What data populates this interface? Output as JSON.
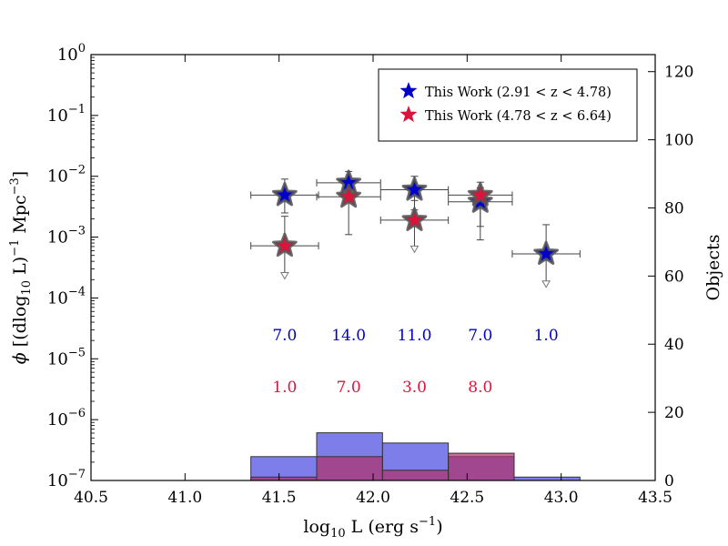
{
  "chart_data": {
    "type": "scatter",
    "xlabel": {
      "base": "log",
      "sub": "10",
      "rest": " L (erg s",
      "sup": "−1",
      "end": ")"
    },
    "ylabel_left": {
      "phi": "ϕ",
      "a": " [(dlog",
      "sub": "10",
      "b": " L)",
      "sup1": "−1",
      "c": " Mpc",
      "sup2": "−3",
      "d": "]"
    },
    "ylabel_right": "Objects",
    "xlim": [
      40.5,
      43.5
    ],
    "ylim_log_exp": [
      -7,
      0
    ],
    "y2lim": [
      0,
      125
    ],
    "x_ticks": [
      "40.5",
      "41.0",
      "41.5",
      "42.0",
      "42.5",
      "43.0",
      "43.5"
    ],
    "x_tick_values": [
      40.5,
      41.0,
      41.5,
      42.0,
      42.5,
      43.0,
      43.5
    ],
    "y_ticks": [
      {
        "exp": -7,
        "base": "10",
        "sup": "−7"
      },
      {
        "exp": -6,
        "base": "10",
        "sup": "−6"
      },
      {
        "exp": -5,
        "base": "10",
        "sup": "−5"
      },
      {
        "exp": -4,
        "base": "10",
        "sup": "−4"
      },
      {
        "exp": -3,
        "base": "10",
        "sup": "−3"
      },
      {
        "exp": -2,
        "base": "10",
        "sup": "−2"
      },
      {
        "exp": -1,
        "base": "10",
        "sup": "−1"
      },
      {
        "exp": 0,
        "base": "10",
        "sup": "0"
      }
    ],
    "y2_ticks": [
      "0",
      "20",
      "40",
      "60",
      "80",
      "100",
      "120"
    ],
    "y2_tick_values": [
      0,
      20,
      40,
      60,
      80,
      100,
      120
    ],
    "legend": {
      "position": "top-right",
      "entries": [
        {
          "label": "This Work (2.91 < z < 4.78)",
          "color": "#0000cc"
        },
        {
          "label": "This Work (4.78 < z < 6.64)",
          "color": "#dc143c"
        }
      ]
    },
    "series": [
      {
        "name": "This Work (2.91 < z < 4.78)",
        "color": "#0000cc",
        "points": [
          {
            "x": 41.53,
            "xerr": 0.18,
            "y": 0.0049,
            "ylo": 0.0025,
            "yhi": 0.009
          },
          {
            "x": 41.87,
            "xerr": 0.17,
            "y": 0.0078,
            "ylo": 0.0045,
            "yhi": 0.012
          },
          {
            "x": 42.22,
            "xerr": 0.18,
            "y": 0.006,
            "ylo": 0.0028,
            "yhi": 0.01
          },
          {
            "x": 42.57,
            "xerr": 0.17,
            "y": 0.0038,
            "ylo": 0.0015,
            "yhi": 0.0065
          },
          {
            "x": 42.92,
            "xerr": 0.18,
            "y": 0.00053,
            "ylo": 0.00016,
            "yhi": 0.0016,
            "upper_limit": true
          }
        ],
        "hist": [
          {
            "left": 41.35,
            "right": 41.7,
            "count": 7
          },
          {
            "left": 41.7,
            "right": 42.05,
            "count": 14
          },
          {
            "left": 42.05,
            "right": 42.4,
            "count": 11
          },
          {
            "left": 42.4,
            "right": 42.75,
            "count": 7
          },
          {
            "left": 42.75,
            "right": 43.1,
            "count": 1
          }
        ]
      },
      {
        "name": "This Work (4.78 < z < 6.64)",
        "color": "#dc143c",
        "points": [
          {
            "x": 41.53,
            "xerr": 0.18,
            "y": 0.00072,
            "ylo": 0.00022,
            "yhi": 0.0022,
            "upper_limit": true
          },
          {
            "x": 41.87,
            "xerr": 0.17,
            "y": 0.0046,
            "ylo": 0.0011,
            "yhi": 0.009
          },
          {
            "x": 42.22,
            "xerr": 0.18,
            "y": 0.0019,
            "ylo": 0.0006,
            "yhi": 0.004,
            "upper_limit": true
          },
          {
            "x": 42.57,
            "xerr": 0.17,
            "y": 0.0049,
            "ylo": 0.0009,
            "yhi": 0.008
          }
        ],
        "hist": [
          {
            "left": 41.35,
            "right": 41.7,
            "count": 1
          },
          {
            "left": 41.7,
            "right": 42.05,
            "count": 7
          },
          {
            "left": 42.05,
            "right": 42.4,
            "count": 3
          },
          {
            "left": 42.4,
            "right": 42.75,
            "count": 8
          }
        ]
      }
    ],
    "count_labels": [
      {
        "series": 0,
        "x": 41.53,
        "text": "7.0"
      },
      {
        "series": 0,
        "x": 41.87,
        "text": "14.0"
      },
      {
        "series": 0,
        "x": 42.22,
        "text": "11.0"
      },
      {
        "series": 0,
        "x": 42.57,
        "text": "7.0"
      },
      {
        "series": 0,
        "x": 42.92,
        "text": "1.0"
      },
      {
        "series": 1,
        "x": 41.53,
        "text": "1.0"
      },
      {
        "series": 1,
        "x": 41.87,
        "text": "7.0"
      },
      {
        "series": 1,
        "x": 42.22,
        "text": "3.0"
      },
      {
        "series": 1,
        "x": 42.57,
        "text": "8.0"
      }
    ],
    "count_label_y_exp": [
      -4.7,
      -5.55
    ],
    "hist_colors": {
      "blue": "#7070e8",
      "red": "#b0306a"
    }
  }
}
